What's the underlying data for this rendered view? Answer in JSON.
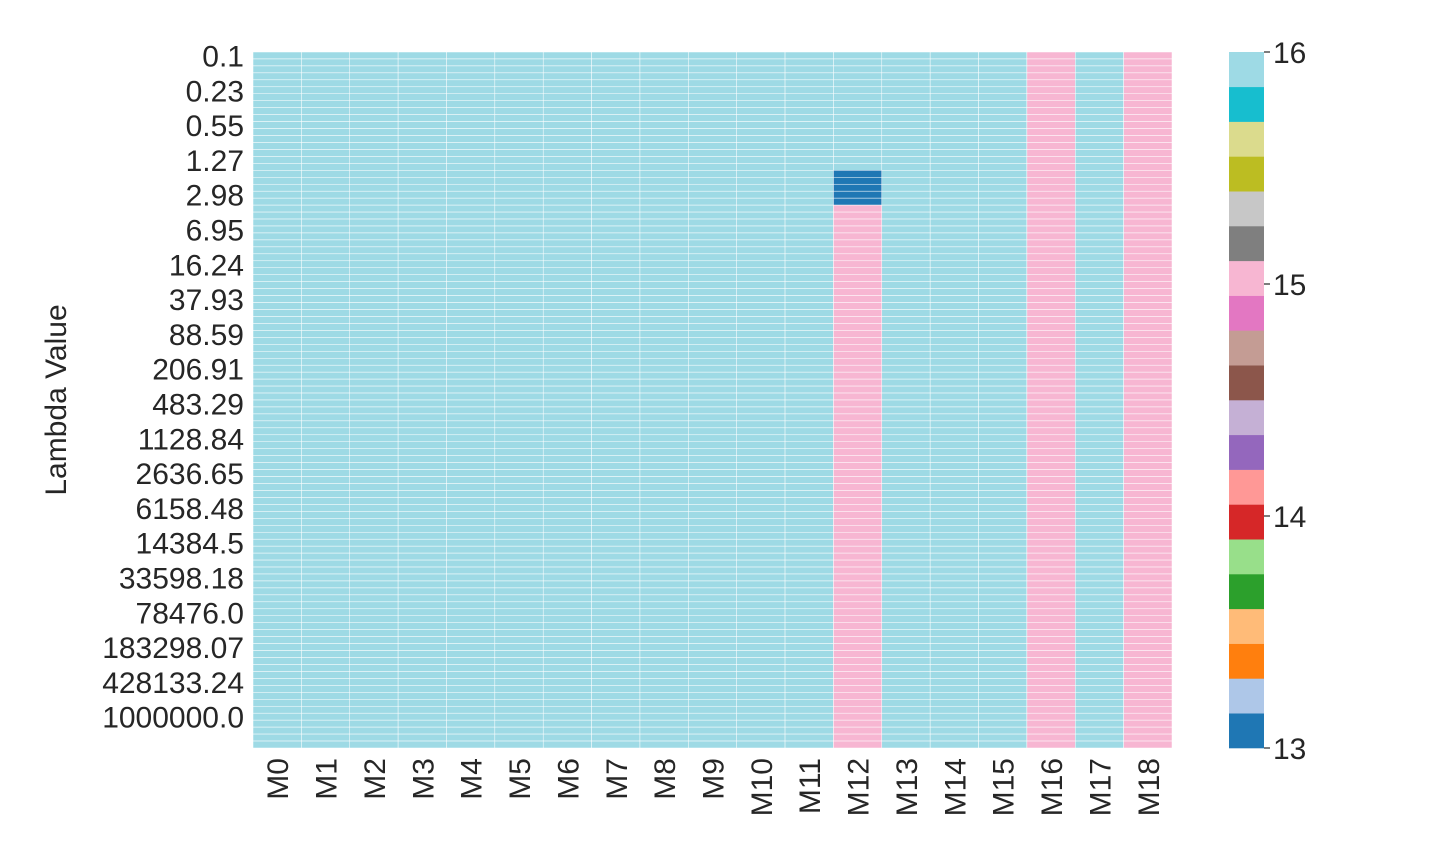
{
  "chart_data": {
    "type": "heatmap",
    "title": "",
    "xlabel": "",
    "ylabel": "Lambda Value",
    "columns": [
      "M0",
      "M1",
      "M2",
      "M3",
      "M4",
      "M5",
      "M6",
      "M7",
      "M8",
      "M9",
      "M10",
      "M11",
      "M12",
      "M13",
      "M14",
      "M15",
      "M16",
      "M17",
      "M18"
    ],
    "y_tick_labels": [
      "0.1",
      "0.23",
      "0.55",
      "1.27",
      "2.98",
      "6.95",
      "16.24",
      "37.93",
      "88.59",
      "206.91",
      "483.29",
      "1128.84",
      "2636.65",
      "6158.48",
      "14384.5",
      "33598.18",
      "78476.0",
      "183298.07",
      "428133.24",
      "1000000.0"
    ],
    "row_count": 100,
    "default_value": 16,
    "column_values": [
      {
        "column": "M12",
        "row_ranges": [
          {
            "from": 0,
            "to": 16,
            "value": 16
          },
          {
            "from": 17,
            "to": 21,
            "value": 13
          },
          {
            "from": 22,
            "to": 99,
            "value": 15
          }
        ]
      },
      {
        "column": "M16",
        "row_ranges": [
          {
            "from": 0,
            "to": 99,
            "value": 15
          }
        ]
      },
      {
        "column": "M18",
        "row_ranges": [
          {
            "from": 0,
            "to": 99,
            "value": 15
          }
        ]
      }
    ],
    "colorbar": {
      "min": 13,
      "max": 16,
      "tick_labels": [
        "13",
        "14",
        "15",
        "16"
      ],
      "colors": [
        "#1f77b4",
        "#aec7e8",
        "#ff7f0e",
        "#ffbb78",
        "#2ca02c",
        "#98df8a",
        "#d62728",
        "#ff9896",
        "#9467bd",
        "#c5b0d5",
        "#8c564b",
        "#c49c94",
        "#e377c2",
        "#f7b6d2",
        "#7f7f7f",
        "#c7c7c7",
        "#bcbd22",
        "#dbdb8d",
        "#17becf",
        "#9edae5"
      ]
    },
    "grid": false,
    "legend": "colorbar-right"
  }
}
